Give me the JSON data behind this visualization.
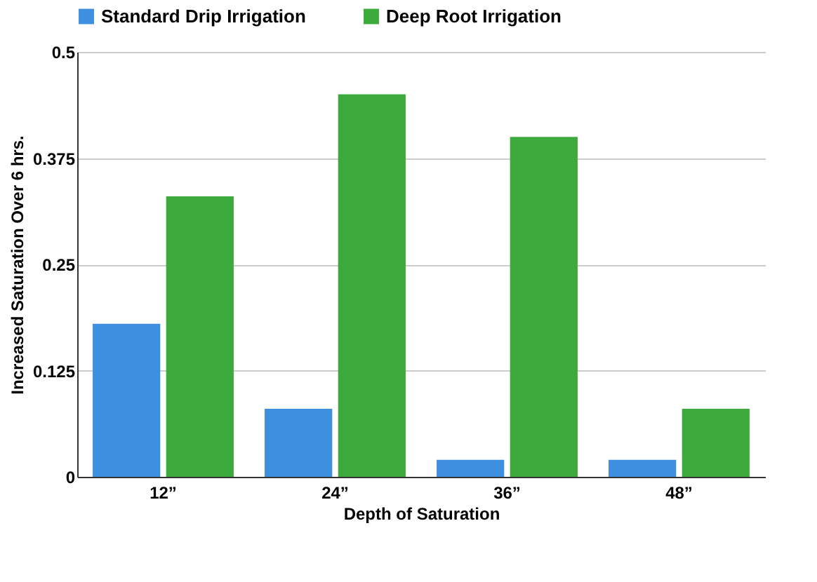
{
  "chart_data": {
    "type": "bar",
    "xlabel": "Depth of Saturation",
    "ylabel": "Increased Saturation Over 6 hrs.",
    "categories": [
      "12”",
      "24”",
      "36”",
      "48”"
    ],
    "series": [
      {
        "name": "Standard Drip Irrigation",
        "color": "#3f8fe0",
        "values": [
          0.18,
          0.08,
          0.02,
          0.02
        ]
      },
      {
        "name": "Deep Root Irrigation",
        "color": "#3caa3c",
        "values": [
          0.33,
          0.45,
          0.4,
          0.08
        ]
      }
    ],
    "ylim": [
      0,
      0.5
    ],
    "yticks": [
      0,
      0.125,
      0.25,
      0.375,
      0.5
    ],
    "grid": "y",
    "legend": "top"
  }
}
